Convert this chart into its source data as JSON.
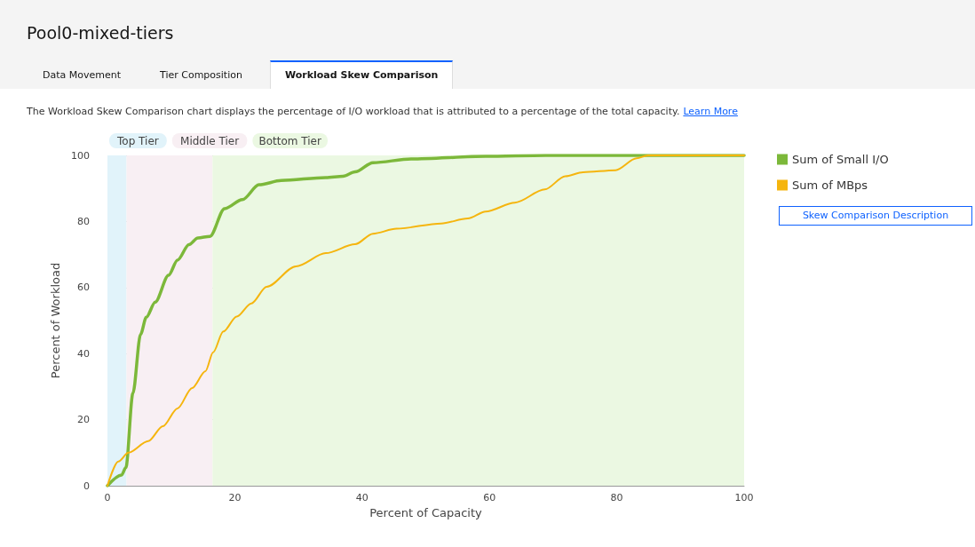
{
  "chart_data": {
    "type": "line",
    "title": "Pool0-mixed-tiers",
    "subtitle": "The Workload Skew Comparison chart displays the percentage of I/O workload that is attributed to a percentage of the total capacity.",
    "xlabel": "Percent of Capacity",
    "ylabel": "Percent of Workload",
    "annotations": [
      "Data Movement",
      "Tier Composition",
      "Workload Skew Comparison",
      "Learn More",
      "Skew Comparison Description"
    ],
    "xlim": [
      0,
      100
    ],
    "xticks": [
      0,
      20,
      40,
      60,
      80,
      100
    ],
    "ylim": [
      0,
      100
    ],
    "yticks": [
      0,
      20,
      40,
      60,
      80,
      100
    ],
    "grid": "y",
    "legend": "top right",
    "marker": "none",
    "line_style": "solid",
    "bands": [
      {
        "axis": "x",
        "from": 0,
        "to": 3,
        "label": "Top Tier",
        "color": "#e1f3fa"
      },
      {
        "axis": "x",
        "from": 3,
        "to": 16.5,
        "label": "Middle Tier",
        "color": "#f8eff3"
      },
      {
        "axis": "x",
        "from": 16.5,
        "to": 100,
        "label": "Bottom Tier",
        "color": "#ebf8e2"
      }
    ],
    "series": [
      {
        "name": "Sum of Small I/O",
        "color": "#7cb83a",
        "x": [
          0,
          2.2,
          2.9,
          4,
          5.2,
          6.1,
          7.5,
          9.6,
          11,
          12.8,
          14.2,
          16.1,
          18.4,
          21.2,
          23.8,
          27.3,
          34.3,
          37,
          38.9,
          41.7,
          47.7,
          59.4,
          68.8,
          100
        ],
        "values": [
          0,
          3.2,
          5.5,
          28,
          45.8,
          51,
          55.6,
          63.7,
          68.3,
          73,
          75,
          75.5,
          83.9,
          86.6,
          91.1,
          92.4,
          93.3,
          93.7,
          95,
          97.8,
          98.9,
          99.7,
          100,
          100
        ]
      },
      {
        "name": "Sum of MBps",
        "color": "#f5b50e",
        "x": [
          0,
          1.7,
          3.3,
          6.4,
          8.7,
          11,
          13.3,
          15.4,
          16.6,
          18.2,
          20.3,
          22.6,
          25,
          29.6,
          34.3,
          38.9,
          41.7,
          45.4,
          52.4,
          56.6,
          59.4,
          64,
          68.7,
          71.9,
          74.7,
          79.8,
          83.1,
          84.9,
          100
        ],
        "values": [
          0,
          7.3,
          10,
          13.5,
          18,
          23.4,
          29.6,
          34.7,
          40.4,
          46.7,
          51.2,
          55.2,
          60.2,
          66.4,
          70.4,
          73.1,
          76.3,
          77.8,
          79.4,
          80.9,
          83,
          85.7,
          89.7,
          93.7,
          94.9,
          95.5,
          99.1,
          100,
          100
        ]
      }
    ]
  }
}
